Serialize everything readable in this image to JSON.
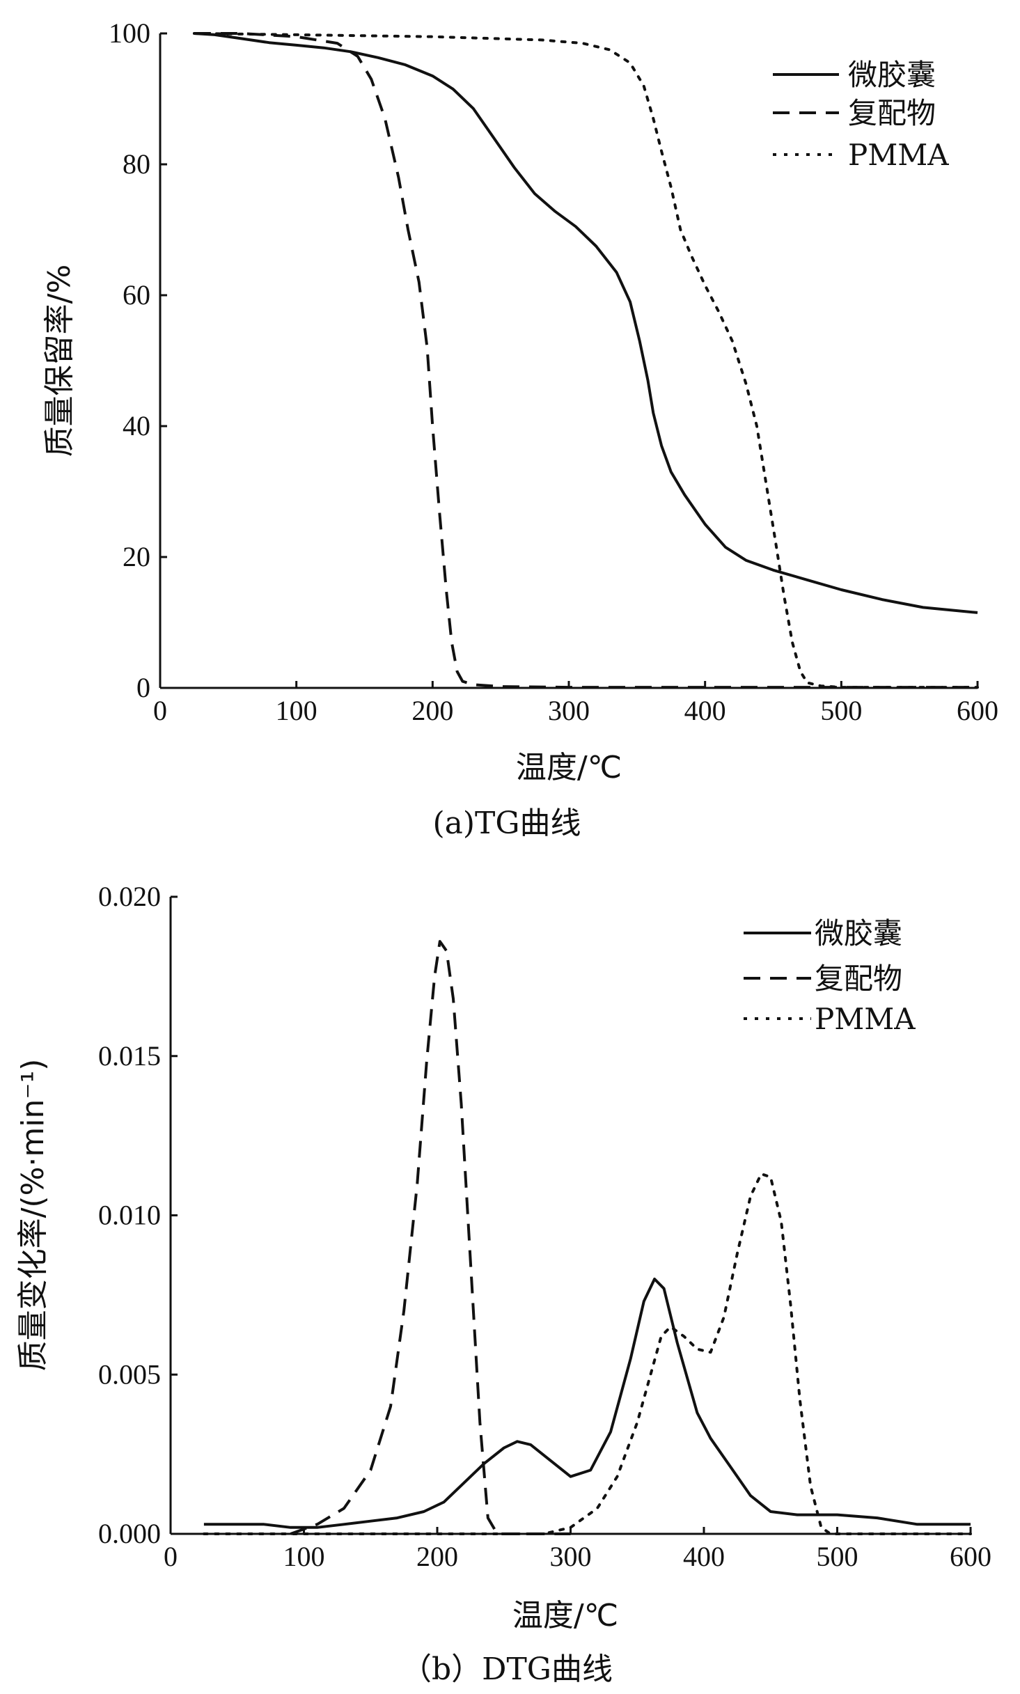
{
  "chart_data": [
    {
      "type": "line",
      "caption": "(a)TG曲线",
      "xlabel": "温度/℃",
      "ylabel": "质量保留率/%",
      "xlim": [
        0,
        600
      ],
      "ylim": [
        0,
        100
      ],
      "xticks": [
        0,
        100,
        200,
        300,
        400,
        500,
        600
      ],
      "yticks": [
        0,
        20,
        40,
        60,
        80,
        100
      ],
      "ytick_labels": [
        "0",
        "20",
        "40",
        "60",
        "80",
        "100"
      ],
      "legend_position": "top-right",
      "grid": false,
      "series": [
        {
          "name": "微胶囊",
          "style": "solid",
          "x": [
            25,
            40,
            60,
            80,
            100,
            120,
            140,
            160,
            180,
            200,
            215,
            230,
            245,
            260,
            275,
            290,
            305,
            320,
            335,
            345,
            352,
            358,
            362,
            368,
            375,
            385,
            400,
            415,
            430,
            450,
            475,
            500,
            530,
            560,
            600
          ],
          "y": [
            100,
            99.8,
            99.2,
            98.6,
            98.2,
            97.8,
            97.2,
            96.3,
            95.2,
            93.5,
            91.5,
            88.5,
            84.0,
            79.5,
            75.5,
            72.8,
            70.5,
            67.5,
            63.5,
            59.0,
            53.0,
            47.0,
            42.0,
            37.0,
            33.0,
            29.5,
            25.0,
            21.5,
            19.5,
            18.0,
            16.5,
            15.0,
            13.5,
            12.3,
            11.5
          ]
        },
        {
          "name": "复配物",
          "style": "dashed",
          "x": [
            25,
            60,
            100,
            130,
            145,
            155,
            165,
            175,
            182,
            190,
            196,
            200,
            205,
            210,
            214,
            218,
            222,
            230,
            250,
            300,
            400,
            500,
            600
          ],
          "y": [
            100,
            100,
            99.5,
            98.5,
            96.5,
            93,
            87,
            78,
            70,
            62,
            52,
            40,
            27,
            15,
            7,
            2.5,
            1.0,
            0.5,
            0.2,
            0.1,
            0.1,
            0.1,
            0.1
          ]
        },
        {
          "name": "PMMA",
          "style": "dotted",
          "x": [
            25,
            100,
            200,
            280,
            310,
            330,
            345,
            355,
            362,
            368,
            375,
            382,
            390,
            400,
            410,
            420,
            430,
            438,
            445,
            452,
            458,
            464,
            470,
            475,
            485,
            500,
            550,
            600
          ],
          "y": [
            100,
            99.8,
            99.5,
            99.0,
            98.5,
            97.5,
            95.5,
            92.0,
            87.0,
            82.0,
            76.5,
            70.0,
            66.0,
            61.5,
            57.5,
            53.0,
            46.5,
            40.0,
            31.0,
            22.0,
            14.0,
            7.0,
            2.5,
            0.8,
            0.3,
            0.1,
            0.1,
            0.1
          ]
        }
      ]
    },
    {
      "type": "line",
      "caption": "（b）DTG曲线",
      "xlabel": "温度/℃",
      "ylabel": "质量变化率/(%·min⁻¹)",
      "xlim": [
        0,
        600
      ],
      "ylim": [
        0,
        0.02
      ],
      "xticks": [
        0,
        100,
        200,
        300,
        400,
        500,
        600
      ],
      "yticks": [
        0,
        0.005,
        0.01,
        0.015,
        0.02
      ],
      "ytick_labels": [
        "0.000",
        "0.005",
        "0.010",
        "0.015",
        "0.020"
      ],
      "legend_position": "top-right",
      "grid": false,
      "series": [
        {
          "name": "微胶囊",
          "style": "solid",
          "x": [
            25,
            50,
            70,
            90,
            110,
            130,
            150,
            170,
            190,
            205,
            220,
            235,
            250,
            260,
            270,
            285,
            300,
            315,
            330,
            345,
            355,
            363,
            370,
            380,
            395,
            405,
            420,
            435,
            450,
            470,
            500,
            530,
            560,
            580,
            600
          ],
          "y": [
            0.0003,
            0.0003,
            0.0003,
            0.0002,
            0.0002,
            0.0003,
            0.0004,
            0.0005,
            0.0007,
            0.001,
            0.0016,
            0.0022,
            0.0027,
            0.0029,
            0.0028,
            0.0023,
            0.0018,
            0.002,
            0.0032,
            0.0055,
            0.0073,
            0.008,
            0.0077,
            0.006,
            0.0038,
            0.003,
            0.0021,
            0.0012,
            0.0007,
            0.0006,
            0.0006,
            0.0005,
            0.0003,
            0.0003,
            0.0003
          ]
        },
        {
          "name": "复配物",
          "style": "dashed",
          "x": [
            90,
            110,
            130,
            150,
            165,
            175,
            185,
            192,
            198,
            202,
            207,
            212,
            218,
            225,
            232,
            238,
            245,
            260,
            300
          ],
          "y": [
            0.0,
            0.0003,
            0.0008,
            0.002,
            0.004,
            0.007,
            0.011,
            0.0148,
            0.0175,
            0.0186,
            0.0183,
            0.0168,
            0.0135,
            0.0085,
            0.0035,
            0.0005,
            0.0,
            0.0,
            0.0
          ]
        },
        {
          "name": "PMMA",
          "style": "dotted",
          "x": [
            25,
            100,
            200,
            280,
            300,
            320,
            335,
            350,
            360,
            368,
            375,
            385,
            395,
            405,
            415,
            425,
            435,
            443,
            450,
            458,
            465,
            472,
            480,
            488,
            495,
            520,
            600
          ],
          "y": [
            0.0,
            0.0,
            0.0,
            0.0,
            0.0002,
            0.0008,
            0.0018,
            0.0035,
            0.005,
            0.0062,
            0.0065,
            0.0062,
            0.0058,
            0.0057,
            0.0068,
            0.0088,
            0.0106,
            0.0113,
            0.0112,
            0.0098,
            0.0072,
            0.0042,
            0.0015,
            0.0002,
            0.0,
            0.0,
            0.0
          ]
        }
      ]
    }
  ]
}
